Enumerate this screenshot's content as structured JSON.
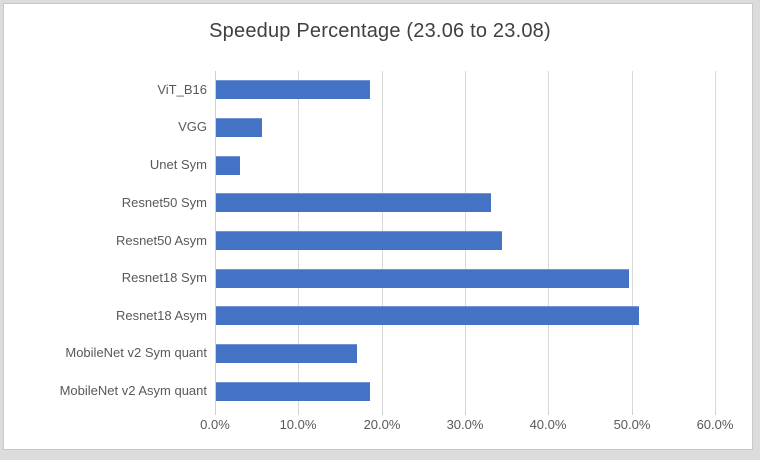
{
  "window": {
    "outer_background": "#dcdcdc",
    "panel_background": "#ffffff",
    "panel_border": "#c8c8c8"
  },
  "chart_data": {
    "type": "bar",
    "orientation": "horizontal",
    "title": "Speedup Percentage (23.06 to 23.08)",
    "categories": [
      "ViT_B16",
      "VGG",
      "Unet Sym",
      "Resnet50 Sym",
      "Resnet50 Asym",
      "Resnet18 Sym",
      "Resnet18 Asym",
      "MobileNet v2 Sym quant",
      "MobileNet v2 Asym quant"
    ],
    "category_order": "top-to-bottom",
    "values_percent": [
      18.5,
      5.5,
      2.9,
      33.0,
      34.3,
      49.5,
      50.8,
      16.9,
      18.5
    ],
    "xlabel": "",
    "ylabel": "",
    "xlim": [
      0,
      60
    ],
    "x_tick_step": 10,
    "x_tick_labels": [
      "0.0%",
      "10.0%",
      "20.0%",
      "30.0%",
      "40.0%",
      "50.0%",
      "60.0%"
    ],
    "grid": "vertical",
    "legend": "none",
    "colors": {
      "bar": "#4472C4",
      "gridline": "#D9D9D9",
      "axis_line": "#D0D0D0",
      "title_text": "#404040",
      "label_text": "#595959"
    }
  }
}
